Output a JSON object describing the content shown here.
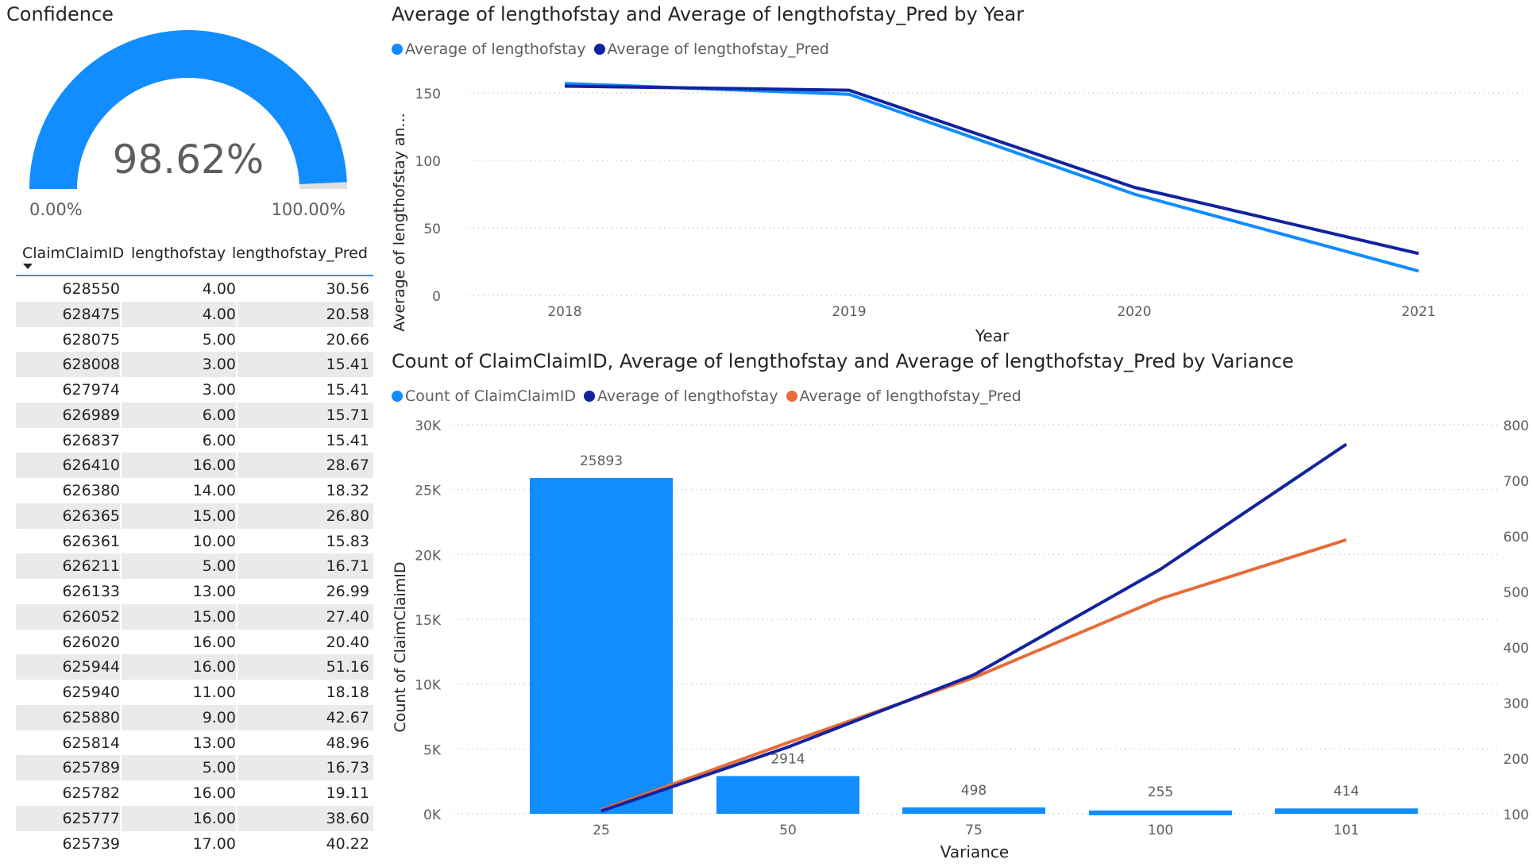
{
  "gauge": {
    "title": "Confidence",
    "value_label": "98.62%",
    "value": 98.62,
    "min_label": "0.00%",
    "max_label": "100.00%",
    "color": "#118dff"
  },
  "table": {
    "headers": [
      "ClaimClaimID",
      "lengthofstay",
      "lengthofstay_Pred"
    ],
    "rows": [
      [
        "628550",
        "4.00",
        "30.56"
      ],
      [
        "628475",
        "4.00",
        "20.58"
      ],
      [
        "628075",
        "5.00",
        "20.66"
      ],
      [
        "628008",
        "3.00",
        "15.41"
      ],
      [
        "627974",
        "3.00",
        "15.41"
      ],
      [
        "626989",
        "6.00",
        "15.71"
      ],
      [
        "626837",
        "6.00",
        "15.41"
      ],
      [
        "626410",
        "16.00",
        "28.67"
      ],
      [
        "626380",
        "14.00",
        "18.32"
      ],
      [
        "626365",
        "15.00",
        "26.80"
      ],
      [
        "626361",
        "10.00",
        "15.83"
      ],
      [
        "626211",
        "5.00",
        "16.71"
      ],
      [
        "626133",
        "13.00",
        "26.99"
      ],
      [
        "626052",
        "15.00",
        "27.40"
      ],
      [
        "626020",
        "16.00",
        "20.40"
      ],
      [
        "625944",
        "16.00",
        "51.16"
      ],
      [
        "625940",
        "11.00",
        "18.18"
      ],
      [
        "625880",
        "9.00",
        "42.67"
      ],
      [
        "625814",
        "13.00",
        "48.96"
      ],
      [
        "625789",
        "5.00",
        "16.73"
      ],
      [
        "625782",
        "16.00",
        "19.11"
      ],
      [
        "625777",
        "16.00",
        "38.60"
      ],
      [
        "625739",
        "17.00",
        "40.22"
      ]
    ]
  },
  "chart_data": [
    {
      "type": "line",
      "title": "Average of lengthofstay and Average of lengthofstay_Pred by Year",
      "xlabel": "Year",
      "ylabel": "Average of lengthofstay an...",
      "categories": [
        "2018",
        "2019",
        "2020",
        "2021"
      ],
      "ylim": [
        0,
        160
      ],
      "yticks": [
        0,
        50,
        100,
        150
      ],
      "grid": true,
      "legend_position": "top-left",
      "series": [
        {
          "name": "Average of lengthofstay",
          "color": "#118dff",
          "values": [
            157,
            149,
            75,
            18
          ]
        },
        {
          "name": "Average of lengthofstay_Pred",
          "color": "#12239e",
          "values": [
            155,
            152,
            80,
            31
          ]
        }
      ]
    },
    {
      "type": "bar",
      "title": "Count of ClaimClaimID, Average of lengthofstay and Average of lengthofstay_Pred by Variance",
      "xlabel": "Variance",
      "ylabel": "Count of ClaimClaimID",
      "categories": [
        "25",
        "50",
        "75",
        "100",
        "101"
      ],
      "ylim": [
        0,
        30000
      ],
      "yticks": [
        0,
        5000,
        10000,
        15000,
        20000,
        25000,
        30000
      ],
      "ytick_labels": [
        "0K",
        "5K",
        "10K",
        "15K",
        "20K",
        "25K",
        "30K"
      ],
      "y2lim": [
        100,
        800
      ],
      "y2ticks": [
        "100",
        "200",
        "300",
        "400",
        "500",
        "600",
        "700",
        "800"
      ],
      "grid": true,
      "legend_position": "top-left",
      "series": [
        {
          "name": "Count of ClaimClaimID",
          "type": "bar",
          "axis": "left",
          "color": "#118dff",
          "values": [
            25893,
            2914,
            498,
            255,
            414
          ],
          "labels": [
            "25893",
            "2914",
            "498",
            "255",
            "414"
          ]
        },
        {
          "name": "Average of lengthofstay",
          "type": "line",
          "axis": "right",
          "color": "#12239e",
          "values": [
            105,
            220,
            350,
            540,
            765
          ]
        },
        {
          "name": "Average of lengthofstay_Pred",
          "type": "line",
          "axis": "right",
          "color": "#e66c37",
          "values": [
            107,
            228,
            345,
            487,
            593
          ]
        }
      ]
    }
  ]
}
